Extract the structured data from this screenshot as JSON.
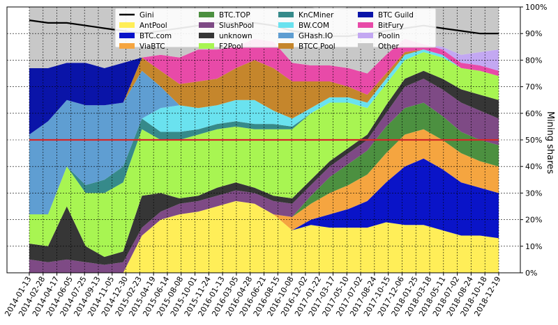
{
  "chart_data": {
    "type": "area",
    "stacked": true,
    "xlabel": "",
    "ylabel": "Mining shares",
    "ylim": [
      0,
      100
    ],
    "y_tick_labels": [
      "0%",
      "10%",
      "20%",
      "30%",
      "40%",
      "50%",
      "60%",
      "70%",
      "80%",
      "90%",
      "100%"
    ],
    "x_tick_labels": [
      "2014-01-13",
      "2014-02-28",
      "2014-04-17",
      "2014-06-05",
      "2014-07-25",
      "2014-09-13",
      "2014-11-05",
      "2014-12-30",
      "2015-02-23",
      "2015-04-19",
      "2015-06-14",
      "2015-08-08",
      "2015-10-01",
      "2015-11-24",
      "2016-01-13",
      "2016-03-05",
      "2016-04-28",
      "2016-06-21",
      "2016-08-15",
      "2016-10-08",
      "2016-12-02",
      "2017-01-22",
      "2017-03-17",
      "2017-05-10",
      "2017-07-02",
      "2017-08-24",
      "2017-10-15",
      "2017-12-06",
      "2018-01-25",
      "2018-03-18",
      "2018-05-11",
      "2018-07-02",
      "2018-08-24",
      "2018-10-18",
      "2018-12-19"
    ],
    "grid": true,
    "reference_line": {
      "value": 50,
      "color": "#d62728"
    },
    "legend": {
      "placement": "top-center",
      "entries": [
        {
          "name": "Gini",
          "color": "#000000",
          "kind": "line"
        },
        {
          "name": "AntPool",
          "color": "#ffee58",
          "kind": "patch"
        },
        {
          "name": "BTC.com",
          "color": "#0a14c8",
          "kind": "patch"
        },
        {
          "name": "ViaBTC",
          "color": "#f5a540",
          "kind": "patch"
        },
        {
          "name": "BTC.TOP",
          "color": "#4c9040",
          "kind": "patch"
        },
        {
          "name": "SlushPool",
          "color": "#7e4a85",
          "kind": "patch"
        },
        {
          "name": "unknown",
          "color": "#363636",
          "kind": "patch"
        },
        {
          "name": "F2Pool",
          "color": "#a8f552",
          "kind": "patch"
        },
        {
          "name": "KnCMiner",
          "color": "#368a8a",
          "kind": "patch"
        },
        {
          "name": "BW.COM",
          "color": "#6ae2ef",
          "kind": "patch"
        },
        {
          "name": "GHash.IO",
          "color": "#5f9ed2",
          "kind": "patch"
        },
        {
          "name": "BTCC Pool",
          "color": "#c5862c",
          "kind": "patch"
        },
        {
          "name": "BTC Guild",
          "color": "#0a14a8",
          "kind": "patch"
        },
        {
          "name": "BitFury",
          "color": "#e84aa8",
          "kind": "patch"
        },
        {
          "name": "Poolin",
          "color": "#c3a8f2",
          "kind": "patch"
        },
        {
          "name": "Other",
          "color": "#c8c8c8",
          "kind": "patch"
        }
      ]
    },
    "gini": [
      95,
      94,
      94,
      93,
      92,
      91,
      90,
      91,
      92,
      93,
      94,
      94,
      94,
      93,
      91,
      90,
      89,
      89,
      90,
      91,
      92,
      93,
      92,
      91,
      90,
      90
    ],
    "series": [
      {
        "name": "AntPool",
        "color": "#ffee58",
        "values": [
          0,
          0,
          0,
          0,
          0,
          0,
          14,
          20,
          22,
          23,
          25,
          27,
          26,
          22,
          16,
          18,
          17,
          17,
          17,
          19,
          18,
          18,
          16,
          14,
          14,
          13
        ]
      },
      {
        "name": "BTC.com",
        "color": "#0a14c8",
        "values": [
          0,
          0,
          0,
          0,
          0,
          0,
          0,
          0,
          0,
          0,
          0,
          0,
          0,
          0,
          0,
          2,
          5,
          7,
          10,
          15,
          22,
          25,
          23,
          20,
          18,
          17
        ]
      },
      {
        "name": "ViaBTC",
        "color": "#f5a540",
        "values": [
          0,
          0,
          0,
          0,
          0,
          0,
          0,
          0,
          0,
          0,
          0,
          0,
          0,
          0,
          5,
          6,
          8,
          9,
          10,
          11,
          12,
          11,
          11,
          11,
          10,
          10
        ]
      },
      {
        "name": "BTC.TOP",
        "color": "#4c9040",
        "values": [
          0,
          0,
          0,
          0,
          0,
          0,
          0,
          0,
          0,
          0,
          0,
          0,
          0,
          0,
          0,
          3,
          6,
          8,
          9,
          10,
          10,
          10,
          9,
          8,
          8,
          8
        ]
      },
      {
        "name": "SlushPool",
        "color": "#7e4a85",
        "values": [
          5,
          4,
          5,
          4,
          3,
          4,
          3,
          3,
          4,
          4,
          4,
          4,
          4,
          5,
          5,
          4,
          4,
          4,
          4,
          5,
          8,
          9,
          10,
          11,
          11,
          10
        ]
      },
      {
        "name": "unknown",
        "color": "#363636",
        "values": [
          6,
          6,
          20,
          6,
          3,
          4,
          12,
          7,
          2,
          2,
          3,
          3,
          2,
          2,
          2,
          2,
          2,
          2,
          2,
          3,
          3,
          3,
          4,
          5,
          6,
          7
        ]
      },
      {
        "name": "F2Pool",
        "color": "#a8f552",
        "values": [
          11,
          12,
          15,
          20,
          24,
          26,
          25,
          20,
          22,
          23,
          22,
          21,
          22,
          25,
          26,
          25,
          22,
          17,
          10,
          8,
          7,
          7,
          8,
          8,
          9,
          9
        ]
      },
      {
        "name": "KnCMiner",
        "color": "#368a8a",
        "values": [
          0,
          0,
          0,
          3,
          5,
          6,
          4,
          3,
          3,
          2,
          2,
          2,
          2,
          2,
          1,
          0,
          0,
          0,
          0,
          0,
          0,
          0,
          0,
          0,
          0,
          0
        ]
      },
      {
        "name": "BW.COM",
        "color": "#6ae2ef",
        "values": [
          0,
          0,
          0,
          0,
          0,
          0,
          0,
          9,
          10,
          8,
          7,
          8,
          9,
          5,
          3,
          2,
          2,
          2,
          2,
          2,
          2,
          1,
          1,
          0,
          0,
          0
        ]
      },
      {
        "name": "GHash.IO",
        "color": "#5f9ed2",
        "values": [
          30,
          35,
          25,
          30,
          28,
          24,
          18,
          8,
          0,
          0,
          0,
          0,
          0,
          0,
          0,
          0,
          0,
          0,
          0,
          0,
          0,
          0,
          0,
          0,
          0,
          0
        ]
      },
      {
        "name": "BTCC Pool",
        "color": "#c5862c",
        "values": [
          0,
          0,
          0,
          0,
          0,
          0,
          5,
          6,
          8,
          10,
          10,
          12,
          15,
          16,
          14,
          10,
          6,
          4,
          3,
          2,
          1,
          0,
          0,
          0,
          0,
          0
        ]
      },
      {
        "name": "BTC Guild",
        "color": "#0a14a8",
        "values": [
          25,
          20,
          14,
          16,
          14,
          15,
          0,
          0,
          0,
          0,
          0,
          0,
          0,
          0,
          0,
          0,
          0,
          0,
          0,
          0,
          0,
          0,
          0,
          0,
          0,
          0
        ]
      },
      {
        "name": "BitFury",
        "color": "#e84aa8",
        "values": [
          0,
          0,
          0,
          0,
          0,
          0,
          0,
          6,
          10,
          12,
          11,
          8,
          8,
          10,
          7,
          6,
          6,
          7,
          8,
          7,
          5,
          2,
          2,
          2,
          2,
          2
        ]
      },
      {
        "name": "Poolin",
        "color": "#c3a8f2",
        "values": [
          0,
          0,
          0,
          0,
          0,
          0,
          0,
          0,
          0,
          0,
          0,
          0,
          0,
          0,
          0,
          0,
          0,
          0,
          0,
          0,
          0,
          0,
          1,
          3,
          5,
          8
        ]
      },
      {
        "name": "Other",
        "color": "#c8c8c8",
        "values": [
          23,
          23,
          21,
          21,
          23,
          21,
          19,
          18,
          19,
          16,
          16,
          15,
          12,
          13,
          21,
          22,
          20,
          23,
          25,
          18,
          12,
          14,
          15,
          18,
          17,
          16
        ]
      }
    ]
  }
}
